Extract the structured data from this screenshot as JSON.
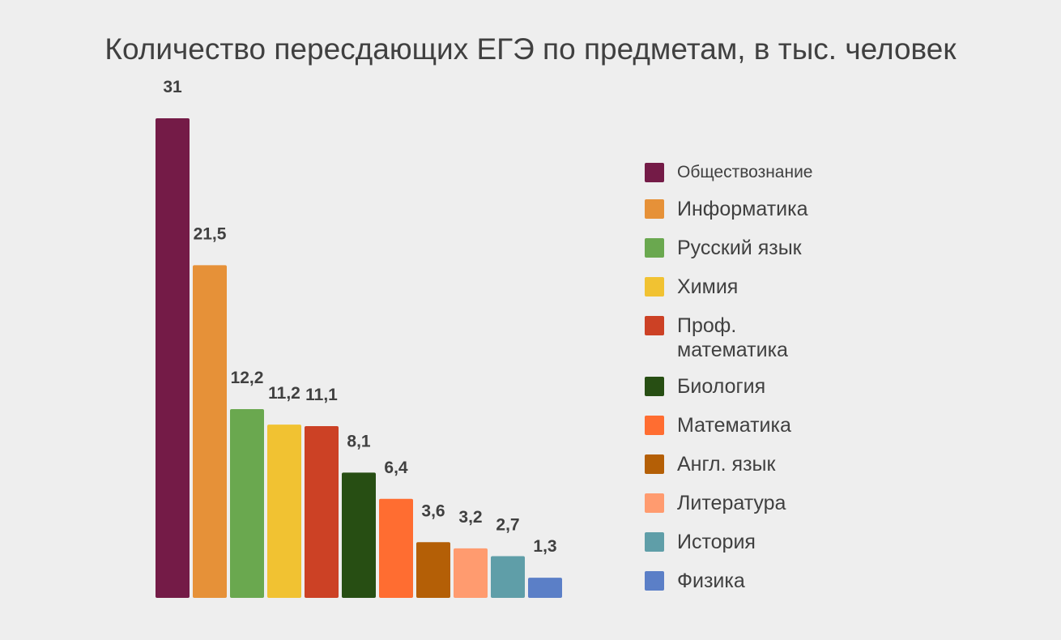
{
  "chart_data": {
    "type": "bar",
    "title": "Количество пересдающих ЕГЭ по предметам, в тыс. человек",
    "categories": [
      "Обществознание",
      "Информатика",
      "Русский язык",
      "Химия",
      "Проф. математика",
      "Биология",
      "Математика",
      "Англ. язык",
      "Литература",
      "История",
      "Физика"
    ],
    "values": [
      31,
      21.5,
      12.2,
      11.2,
      11.1,
      8.1,
      6.4,
      3.6,
      3.2,
      2.7,
      1.3
    ],
    "value_labels": [
      "31",
      "21,5",
      "12,2",
      "11,2",
      "11,1",
      "8,1",
      "6,4",
      "3,6",
      "3,2",
      "2,7",
      "1,3"
    ],
    "colors": [
      "#741b47",
      "#e69138",
      "#6aa84f",
      "#f1c232",
      "#cc4125",
      "#274e13",
      "#ff6d31",
      "#b45f06",
      "#ff9b6f",
      "#5f9ea8",
      "#5b7fc7"
    ],
    "ylim": [
      0,
      31
    ],
    "grid": false,
    "legend_position": "right"
  }
}
